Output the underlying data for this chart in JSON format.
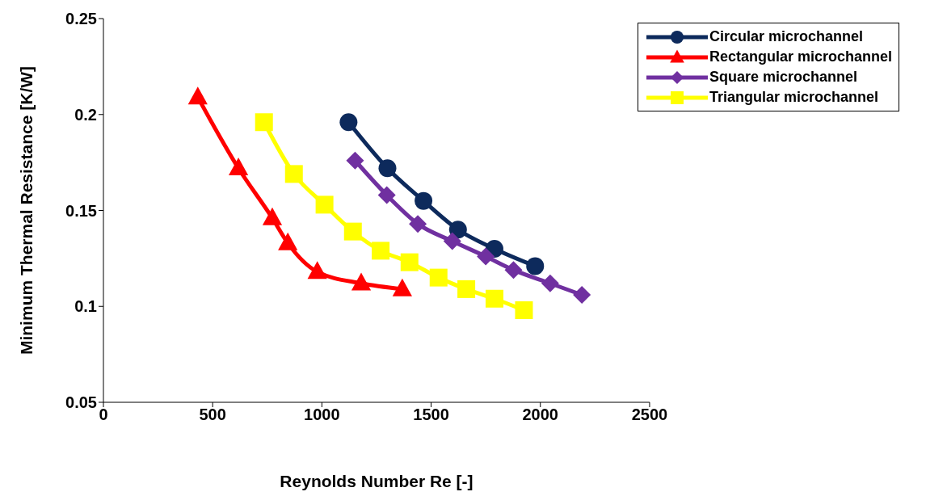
{
  "chart_data": {
    "type": "line",
    "xlabel": "Reynolds Number Re [-]",
    "ylabel": "Minimum Thermal Resistance [K/W]",
    "xlim": [
      0,
      2500
    ],
    "xticks": [
      0,
      500,
      1000,
      1500,
      2000,
      2500
    ],
    "ylim": [
      0.05,
      0.25
    ],
    "yticks": [
      0.05,
      0.1,
      0.15,
      0.2,
      0.25
    ],
    "grid": false,
    "legend": "top right",
    "series": [
      {
        "name": "Circular microchannel",
        "color": "#0d2a5c",
        "marker": "circle",
        "x": [
          1122,
          1300,
          1465,
          1623,
          1790,
          1976
        ],
        "values": [
          0.196,
          0.172,
          0.155,
          0.14,
          0.13,
          0.121
        ]
      },
      {
        "name": "Rectangular microchannel",
        "color": "#ff0000",
        "marker": "triangle",
        "x": [
          432,
          618,
          773,
          844,
          979,
          1180,
          1368
        ],
        "values": [
          0.209,
          0.172,
          0.146,
          0.133,
          0.118,
          0.112,
          0.109
        ]
      },
      {
        "name": "Square microchannel",
        "color": "#7030a0",
        "marker": "diamond",
        "x": [
          1152,
          1297,
          1439,
          1597,
          1750,
          1877,
          2045,
          2190
        ],
        "values": [
          0.176,
          0.158,
          0.143,
          0.134,
          0.126,
          0.119,
          0.112,
          0.106
        ]
      },
      {
        "name": "Triangular microchannel",
        "color": "#ffff00",
        "marker": "square",
        "x": [
          735,
          872,
          1012,
          1142,
          1269,
          1401,
          1534,
          1661,
          1790,
          1925
        ],
        "values": [
          0.196,
          0.169,
          0.153,
          0.139,
          0.129,
          0.123,
          0.115,
          0.109,
          0.104,
          0.098
        ]
      }
    ]
  }
}
